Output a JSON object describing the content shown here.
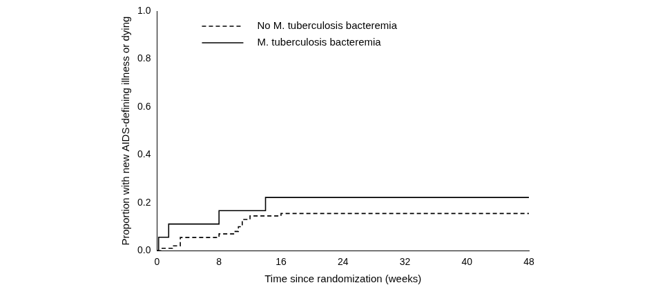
{
  "chart_data": {
    "type": "step",
    "x_label": "Time since randomization (weeks)",
    "y_label": "Proportion with new AIDS-defining illness or dying",
    "xlim": [
      0,
      48
    ],
    "xticks": [
      0,
      8,
      16,
      24,
      32,
      40,
      48
    ],
    "ylim": [
      0,
      1
    ],
    "yticks": [
      {
        "value": 0,
        "label": "0.0"
      },
      0.2,
      0.4,
      0.6,
      0.8,
      {
        "value": 1,
        "label": "1.0"
      }
    ],
    "grid": false,
    "legend": "top",
    "series": [
      {
        "name": "No M. tuberculosis bacteremia",
        "color": "#000000",
        "line_style": "dashed",
        "x": [
          0,
          0.5,
          2,
          3,
          8,
          10,
          10.5,
          11,
          12,
          16,
          48
        ],
        "values": [
          0,
          0.01,
          0.02,
          0.055,
          0.07,
          0.08,
          0.1,
          0.13,
          0.145,
          0.155,
          0.155
        ]
      },
      {
        "name": "M. tuberculosis bacteremia",
        "color": "#000000",
        "line_style": "solid",
        "x": [
          0,
          0.2,
          1.5,
          8,
          14,
          48
        ],
        "values": [
          0,
          0.056,
          0.111,
          0.167,
          0.222,
          0.222
        ]
      }
    ]
  }
}
